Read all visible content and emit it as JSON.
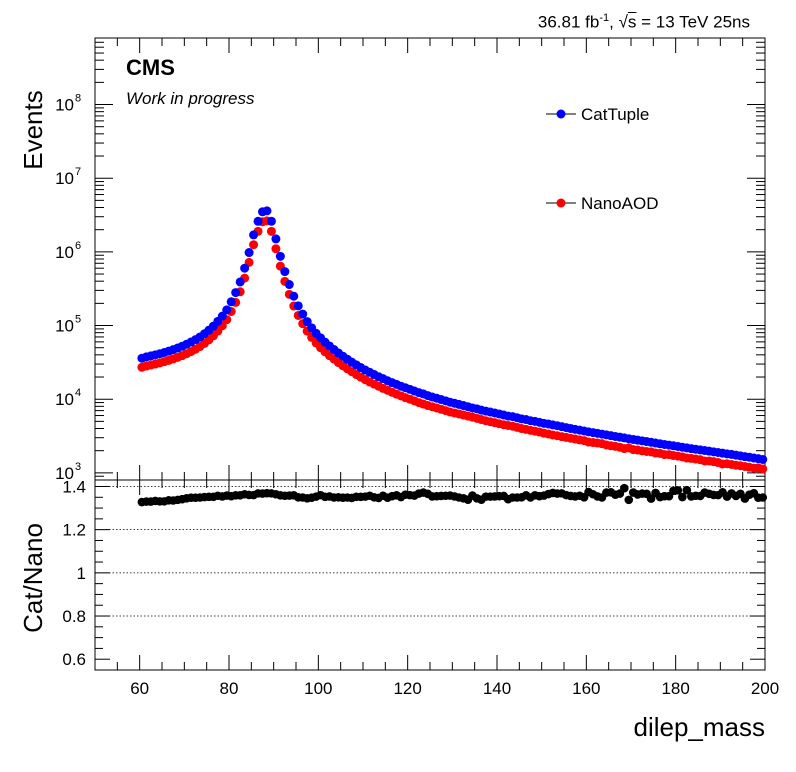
{
  "chart_data": [
    {
      "type": "scatter",
      "panel": "main",
      "header": {
        "lumi_value": "36.81 fb",
        "lumi_exp": "-1",
        "energy_sep": ", √",
        "energy_var": "s",
        "energy_rest": " = 13 TeV 25ns"
      },
      "experiment_label": "CMS",
      "status_label": "Work in progress",
      "ylabel": "Events",
      "yscale": "log",
      "ylim": [
        800,
        800000000
      ],
      "xlim": [
        50,
        200
      ],
      "ytick_exponents": [
        "3",
        "4",
        "5",
        "6",
        "7",
        "8"
      ],
      "ytick_base": "10",
      "legend": [
        {
          "label": "CatTuple",
          "color": "#0000ff"
        },
        {
          "label": "NanoAOD",
          "color": "#ff0000"
        }
      ],
      "x": [
        60.5,
        61.5,
        62.5,
        63.5,
        64.5,
        65.5,
        66.5,
        67.5,
        68.5,
        69.5,
        70.5,
        71.5,
        72.5,
        73.5,
        74.5,
        75.5,
        76.5,
        77.5,
        78.5,
        79.5,
        80.5,
        81.5,
        82.5,
        83.5,
        84.5,
        85.5,
        86.5,
        87.5,
        88.5,
        89.5,
        90.5,
        91.5,
        92.5,
        93.5,
        94.5,
        95.5,
        96.5,
        97.5,
        98.5,
        99.5,
        100.5,
        101.5,
        102.5,
        103.5,
        104.5,
        105.5,
        106.5,
        107.5,
        108.5,
        109.5,
        110.5,
        111.5,
        112.5,
        113.5,
        114.5,
        115.5,
        116.5,
        117.5,
        118.5,
        119.5,
        120.5,
        121.5,
        122.5,
        123.5,
        124.5,
        125.5,
        126.5,
        127.5,
        128.5,
        129.5,
        130.5,
        131.5,
        132.5,
        133.5,
        134.5,
        135.5,
        136.5,
        137.5,
        138.5,
        139.5,
        140.5,
        141.5,
        142.5,
        143.5,
        144.5,
        145.5,
        146.5,
        147.5,
        148.5,
        149.5,
        150.5,
        151.5,
        152.5,
        153.5,
        154.5,
        155.5,
        156.5,
        157.5,
        158.5,
        159.5,
        160.5,
        161.5,
        162.5,
        163.5,
        164.5,
        165.5,
        166.5,
        167.5,
        168.5,
        169.5,
        170.5,
        171.5,
        172.5,
        173.5,
        174.5,
        175.5,
        176.5,
        177.5,
        178.5,
        179.5,
        180.5,
        181.5,
        182.5,
        183.5,
        184.5,
        185.5,
        186.5,
        187.5,
        188.5,
        189.5,
        190.5,
        191.5,
        192.5,
        193.5,
        194.5,
        195.5,
        196.5,
        197.5,
        198.5,
        199.5
      ],
      "series": [
        {
          "name": "CatTuple",
          "color": "#0000ff",
          "values": [
            36000,
            37500,
            38700,
            40000,
            41400,
            43000,
            44900,
            47000,
            49500,
            52300,
            55700,
            59700,
            64300,
            70000,
            77300,
            86500,
            98000,
            114000,
            134000,
            163000,
            210000,
            280000,
            390000,
            600000,
            980000,
            1700000,
            2600000,
            3500000,
            3600000,
            2600000,
            1500000,
            870000,
            540000,
            360000,
            250000,
            185000,
            143000,
            113000,
            93000,
            78500,
            68000,
            59500,
            52800,
            47200,
            42400,
            38300,
            34800,
            31800,
            29200,
            26900,
            24900,
            23200,
            21600,
            20200,
            19000,
            17800,
            16800,
            15900,
            15000,
            14300,
            13600,
            12900,
            12300,
            11800,
            11200,
            10700,
            10300,
            9900,
            9500,
            9100,
            8800,
            8500,
            8200,
            7900,
            7600,
            7400,
            7100,
            6900,
            6700,
            6500,
            6300,
            6100,
            5900,
            5800,
            5600,
            5400,
            5300,
            5100,
            5000,
            4850,
            4700,
            4600,
            4480,
            4360,
            4240,
            4120,
            4000,
            3900,
            3800,
            3700,
            3600,
            3520,
            3440,
            3360,
            3280,
            3200,
            3120,
            3050,
            2980,
            2910,
            2840,
            2780,
            2720,
            2660,
            2600,
            2540,
            2480,
            2430,
            2380,
            2330,
            2280,
            2230,
            2180,
            2130,
            2090,
            2050,
            2010,
            1970,
            1930,
            1890,
            1850,
            1810,
            1780,
            1740,
            1700,
            1660,
            1630,
            1590,
            1560,
            1520
          ]
        },
        {
          "name": "NanoAOD",
          "color": "#ff0000",
          "values": [
            27100,
            28200,
            29100,
            30000,
            31100,
            32300,
            33600,
            35200,
            37000,
            39000,
            41400,
            44300,
            47700,
            51900,
            57200,
            64000,
            72500,
            84000,
            99000,
            120000,
            155000,
            206000,
            287000,
            440000,
            720000,
            1250000,
            1900000,
            2560000,
            2630000,
            1900000,
            1100000,
            640000,
            398000,
            265000,
            184000,
            137000,
            106000,
            84000,
            69000,
            58000,
            50000,
            44000,
            39000,
            35000,
            31400,
            28400,
            25800,
            23600,
            21600,
            19900,
            18400,
            17100,
            16000,
            15000,
            14000,
            13200,
            12400,
            11700,
            11100,
            10500,
            10000,
            9500,
            9000,
            8600,
            8200,
            7900,
            7600,
            7300,
            7000,
            6700,
            6500,
            6300,
            6100,
            5900,
            5700,
            5500,
            5300,
            5100,
            4950,
            4800,
            4650,
            4500,
            4400,
            4300,
            4150,
            4000,
            3900,
            3780,
            3680,
            3580,
            3460,
            3370,
            3270,
            3190,
            3100,
            3030,
            2950,
            2880,
            2800,
            2740,
            2620,
            2580,
            2540,
            2490,
            2390,
            2330,
            2290,
            2230,
            2140,
            2180,
            2070,
            2040,
            1990,
            1950,
            1930,
            1860,
            1840,
            1770,
            1770,
            1720,
            1690,
            1650,
            1590,
            1570,
            1540,
            1510,
            1450,
            1450,
            1420,
            1380,
            1320,
            1330,
            1300,
            1270,
            1250,
            1220,
            1190,
            1160,
            1170,
            1130
          ]
        }
      ]
    },
    {
      "type": "scatter",
      "panel": "ratio",
      "ylabel": "Cat/Nano",
      "xlabel": "dilep_mass",
      "xlim": [
        50,
        200
      ],
      "ylim": [
        0.55,
        1.43
      ],
      "xticks": [
        "60",
        "80",
        "100",
        "120",
        "140",
        "160",
        "180",
        "200"
      ],
      "yticks": [
        "0.6",
        "0.8",
        "1",
        "1.2",
        "1.4"
      ],
      "gridlines_y": [
        0.8,
        1.0,
        1.2,
        1.4
      ],
      "color": "#000000",
      "x": [
        60.5,
        61.5,
        62.5,
        63.5,
        64.5,
        65.5,
        66.5,
        67.5,
        68.5,
        69.5,
        70.5,
        71.5,
        72.5,
        73.5,
        74.5,
        75.5,
        76.5,
        77.5,
        78.5,
        79.5,
        80.5,
        81.5,
        82.5,
        83.5,
        84.5,
        85.5,
        86.5,
        87.5,
        88.5,
        89.5,
        90.5,
        91.5,
        92.5,
        93.5,
        94.5,
        95.5,
        96.5,
        97.5,
        98.5,
        99.5,
        100.5,
        101.5,
        102.5,
        103.5,
        104.5,
        105.5,
        106.5,
        107.5,
        108.5,
        109.5,
        110.5,
        111.5,
        112.5,
        113.5,
        114.5,
        115.5,
        116.5,
        117.5,
        118.5,
        119.5,
        120.5,
        121.5,
        122.5,
        123.5,
        124.5,
        125.5,
        126.5,
        127.5,
        128.5,
        129.5,
        130.5,
        131.5,
        132.5,
        133.5,
        134.5,
        135.5,
        136.5,
        137.5,
        138.5,
        139.5,
        140.5,
        141.5,
        142.5,
        143.5,
        144.5,
        145.5,
        146.5,
        147.5,
        148.5,
        149.5,
        150.5,
        151.5,
        152.5,
        153.5,
        154.5,
        155.5,
        156.5,
        157.5,
        158.5,
        159.5,
        160.5,
        161.5,
        162.5,
        163.5,
        164.5,
        165.5,
        166.5,
        167.5,
        168.5,
        169.5,
        170.5,
        171.5,
        172.5,
        173.5,
        174.5,
        175.5,
        176.5,
        177.5,
        178.5,
        179.5,
        180.5,
        181.5,
        182.5,
        183.5,
        184.5,
        185.5,
        186.5,
        187.5,
        188.5,
        189.5,
        190.5,
        191.5,
        192.5,
        193.5,
        194.5,
        195.5,
        196.5,
        197.5,
        198.5,
        199.5
      ],
      "values": [
        1.328,
        1.33,
        1.33,
        1.333,
        1.331,
        1.331,
        1.336,
        1.335,
        1.338,
        1.341,
        1.345,
        1.348,
        1.348,
        1.349,
        1.351,
        1.352,
        1.352,
        1.357,
        1.354,
        1.358,
        1.355,
        1.359,
        1.359,
        1.364,
        1.361,
        1.36,
        1.368,
        1.367,
        1.369,
        1.368,
        1.364,
        1.359,
        1.357,
        1.358,
        1.359,
        1.35,
        1.349,
        1.345,
        1.348,
        1.353,
        1.36,
        1.352,
        1.354,
        1.349,
        1.35,
        1.348,
        1.349,
        1.347,
        1.352,
        1.352,
        1.353,
        1.357,
        1.35,
        1.347,
        1.357,
        1.348,
        1.355,
        1.359,
        1.351,
        1.362,
        1.36,
        1.358,
        1.367,
        1.372,
        1.366,
        1.354,
        1.355,
        1.356,
        1.357,
        1.358,
        1.354,
        1.349,
        1.345,
        1.339,
        1.358,
        1.345,
        1.339,
        1.353,
        1.353,
        1.354,
        1.355,
        1.356,
        1.341,
        1.349,
        1.349,
        1.35,
        1.359,
        1.349,
        1.359,
        1.355,
        1.358,
        1.365,
        1.37,
        1.367,
        1.368,
        1.36,
        1.356,
        1.354,
        1.357,
        1.35,
        1.374,
        1.364,
        1.354,
        1.349,
        1.372,
        1.373,
        1.362,
        1.367,
        1.392,
        1.338,
        1.372,
        1.363,
        1.367,
        1.366,
        1.344,
        1.37,
        1.351,
        1.355,
        1.355,
        1.38,
        1.382,
        1.351,
        1.383,
        1.354,
        1.357,
        1.356,
        1.372,
        1.366,
        1.361,
        1.36,
        1.373,
        1.353,
        1.368,
        1.356,
        1.366,
        1.344,
        1.362,
        1.369,
        1.348,
        1.349
      ]
    }
  ]
}
